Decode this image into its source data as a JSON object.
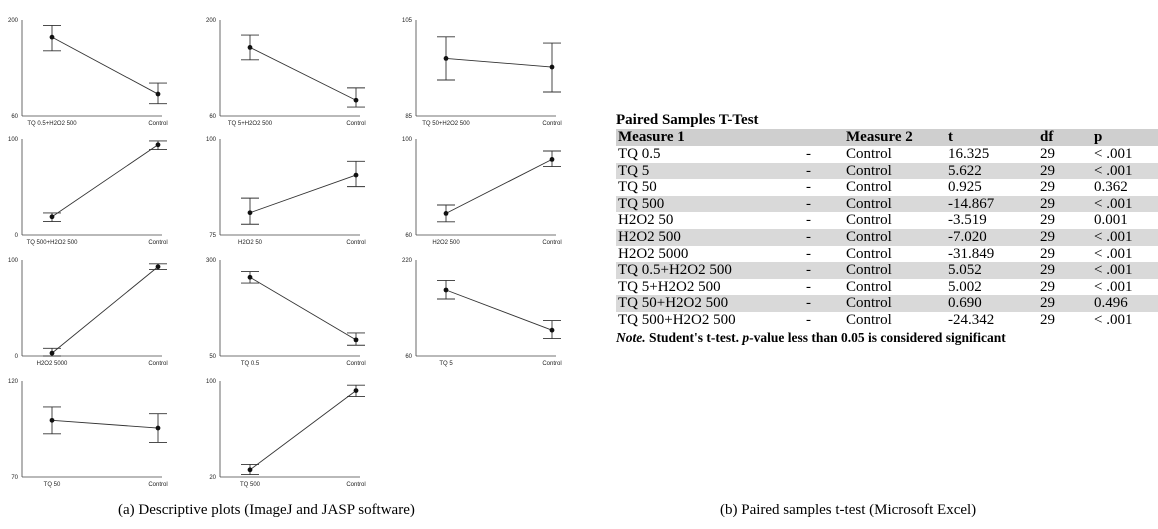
{
  "chart_data": {
    "type": "line",
    "caption": "(a) Descriptive plots (ImageJ and JASP software)",
    "panels": [
      {
        "categories": [
          "TQ 0.5+H2O2 500",
          "Control"
        ],
        "means": [
          175,
          92
        ],
        "ci_low": [
          155,
          78
        ],
        "ci_high": [
          192,
          108
        ],
        "ylim": [
          60,
          200
        ],
        "yticks": [
          "60",
          "200"
        ]
      },
      {
        "categories": [
          "TQ 5+H2O2 500",
          "Control"
        ],
        "means": [
          160,
          83
        ],
        "ci_low": [
          142,
          73
        ],
        "ci_high": [
          178,
          101
        ],
        "ylim": [
          60,
          200
        ],
        "yticks": [
          "60",
          "200"
        ]
      },
      {
        "categories": [
          "TQ 50+H2O2 500",
          "Control"
        ],
        "means": [
          97,
          95.2
        ],
        "ci_low": [
          92.5,
          90
        ],
        "ci_high": [
          101.5,
          100.2
        ],
        "ylim": [
          85,
          105
        ],
        "yticks": [
          "85",
          "105"
        ]
      },
      {
        "categories": [
          "TQ 500+H2O2 500",
          "Control"
        ],
        "means": [
          19,
          94
        ],
        "ci_low": [
          14,
          89
        ],
        "ci_high": [
          23,
          98
        ],
        "ylim": [
          0,
          100
        ],
        "yticks": [
          "0",
          "100"
        ]
      },
      {
        "categories": [
          "H2O2 50",
          "Control"
        ],
        "means": [
          80.8,
          90.6
        ],
        "ci_low": [
          77.8,
          87.6
        ],
        "ci_high": [
          84.6,
          94.2
        ],
        "ylim": [
          75,
          100
        ],
        "yticks": [
          "75",
          "100"
        ]
      },
      {
        "categories": [
          "H2O2 500",
          "Control"
        ],
        "means": [
          69,
          91.5
        ],
        "ci_low": [
          65.5,
          88.5
        ],
        "ci_high": [
          72.5,
          95
        ],
        "ylim": [
          60,
          100
        ],
        "yticks": [
          "60",
          "100"
        ]
      },
      {
        "categories": [
          "H2O2 5000",
          "Control"
        ],
        "means": [
          3,
          93
        ],
        "ci_low": [
          0,
          90
        ],
        "ci_high": [
          8,
          96
        ],
        "ylim": [
          0,
          100
        ],
        "yticks": [
          "0",
          "100"
        ]
      },
      {
        "categories": [
          "TQ 0.5",
          "Control"
        ],
        "means": [
          255,
          92
        ],
        "ci_low": [
          240,
          78
        ],
        "ci_high": [
          270,
          110
        ],
        "ylim": [
          50,
          300
        ],
        "yticks": [
          "50",
          "300"
        ]
      },
      {
        "categories": [
          "TQ 5",
          "Control"
        ],
        "means": [
          170,
          103
        ],
        "ci_low": [
          155,
          89
        ],
        "ci_high": [
          186,
          119
        ],
        "ylim": [
          60,
          220
        ],
        "yticks": [
          "60",
          "220"
        ]
      },
      {
        "categories": [
          "TQ 50",
          "Control"
        ],
        "means": [
          99.5,
          95.5
        ],
        "ci_low": [
          92.5,
          88
        ],
        "ci_high": [
          106.5,
          103
        ],
        "ylim": [
          70,
          120
        ],
        "yticks": [
          "70",
          "120"
        ]
      },
      {
        "categories": [
          "TQ 500",
          "Control"
        ],
        "means": [
          26,
          92
        ],
        "ci_low": [
          22,
          87
        ],
        "ci_high": [
          30.5,
          96.5
        ],
        "ylim": [
          20,
          100
        ],
        "yticks": [
          "20",
          "100"
        ]
      }
    ]
  },
  "ttest": {
    "title": "Paired Samples T-Test",
    "headers": [
      "Measure 1",
      "",
      "Measure 2",
      "t",
      "df",
      "p"
    ],
    "rows": [
      [
        "TQ 0.5",
        "-",
        "Control",
        "16.325",
        "29",
        "< .001"
      ],
      [
        "TQ 5",
        "-",
        "Control",
        "5.622",
        "29",
        "< .001"
      ],
      [
        "TQ 50",
        "-",
        "Control",
        "0.925",
        "29",
        "0.362"
      ],
      [
        "TQ 500",
        "-",
        "Control",
        "-14.867",
        "29",
        "< .001"
      ],
      [
        "H2O2 50",
        "-",
        "Control",
        "-3.519",
        "29",
        "0.001"
      ],
      [
        "H2O2 500",
        "-",
        "Control",
        "-7.020",
        "29",
        "< .001"
      ],
      [
        "H2O2 5000",
        "-",
        "Control",
        "-31.849",
        "29",
        "< .001"
      ],
      [
        "TQ 0.5+H2O2 500",
        "-",
        "Control",
        "5.052",
        "29",
        "< .001"
      ],
      [
        "TQ 5+H2O2 500",
        "-",
        "Control",
        "5.002",
        "29",
        "< .001"
      ],
      [
        "TQ 50+H2O2 500",
        "-",
        "Control",
        "0.690",
        "29",
        "0.496"
      ],
      [
        "TQ 500+H2O2 500",
        "-",
        "Control",
        "-24.342",
        "29",
        "< .001"
      ]
    ],
    "note_label": "Note.",
    "note_text_1": "Student's t-test.",
    "note_p": "p",
    "note_text_2": "-value less than 0.05 is considered significant",
    "caption": "(b) Paired samples t-test (Microsoft Excel)"
  }
}
